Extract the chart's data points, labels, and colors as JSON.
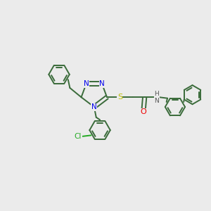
{
  "bg_color": "#ebebeb",
  "bond_color": "#3a6b3a",
  "n_color": "#0000ee",
  "s_color": "#bbbb00",
  "o_color": "#ee0000",
  "cl_color": "#22aa22",
  "lw": 1.4,
  "figsize": [
    3.0,
    3.0
  ],
  "dpi": 100,
  "xlim": [
    0,
    10
  ],
  "ylim": [
    0,
    10
  ]
}
